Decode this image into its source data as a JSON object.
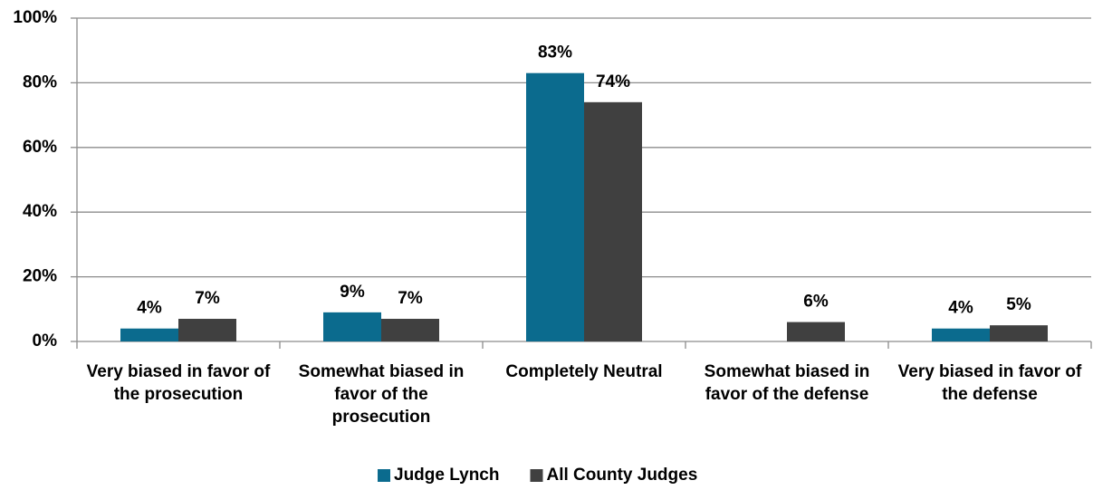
{
  "chart_data": {
    "type": "bar",
    "categories": [
      "Very biased in favor of the prosecution",
      "Somewhat biased in favor of the prosecution",
      "Completely Neutral",
      "Somewhat biased in favor of the defense",
      "Very biased in favor of the defense"
    ],
    "series": [
      {
        "name": "Judge Lynch",
        "color": "#0b6b8e",
        "values": [
          4,
          9,
          83,
          null,
          4
        ],
        "value_labels": [
          "4%",
          "9%",
          "83%",
          null,
          "4%"
        ]
      },
      {
        "name": "All County Judges",
        "color": "#404040",
        "values": [
          7,
          7,
          74,
          6,
          5
        ],
        "value_labels": [
          "7%",
          "7%",
          "74%",
          "6%",
          "5%"
        ]
      }
    ],
    "ylim": [
      0,
      100
    ],
    "yticks": [
      {
        "value": 0,
        "label": "0%"
      },
      {
        "value": 20,
        "label": "20%"
      },
      {
        "value": 40,
        "label": "40%"
      },
      {
        "value": 60,
        "label": "60%"
      },
      {
        "value": 80,
        "label": "80%"
      },
      {
        "value": 100,
        "label": "100%"
      }
    ],
    "grid": true,
    "legend": "bottom"
  }
}
